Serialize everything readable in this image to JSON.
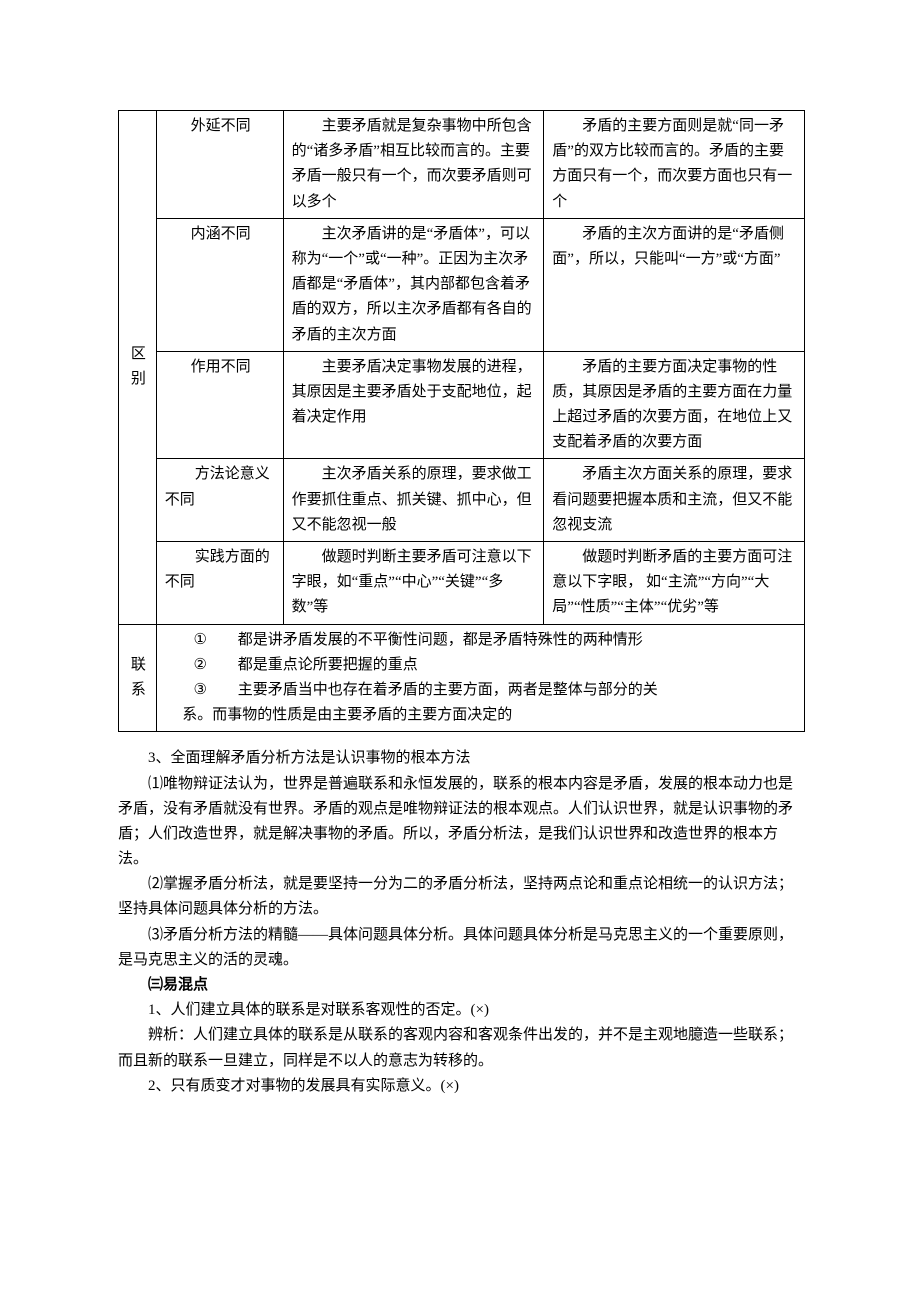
{
  "table": {
    "qubie_label": "区别",
    "lianxi_label": "联系",
    "rows": [
      {
        "c1": "外延不同",
        "c2": "　　主要矛盾就是复杂事物中所包含的“诸多矛盾”相互比较而言的。主要矛盾一般只有一个，而次要矛盾则可以多个",
        "c3": "　　矛盾的主要方面则是就“同一矛盾”的双方比较而言的。矛盾的主要方面只有一个，而次要方面也只有一个"
      },
      {
        "c1": "内涵不同",
        "c2": "　　主次矛盾讲的是“矛盾体”，可以称为“一个”或“一种”。正因为主次矛盾都是“矛盾体”，其内部都包含着矛盾的双方，所以主次矛盾都有各自的矛盾的主次方面",
        "c3": "　　矛盾的主次方面讲的是“矛盾侧面”，所以，只能叫“一方”或“方面”"
      },
      {
        "c1": "作用不同",
        "c2": "　　主要矛盾决定事物发展的进程，其原因是主要矛盾处于支配地位，起着决定作用",
        "c3": "　　矛盾的主要方面决定事物的性质，其原因是矛盾的主要方面在力量上超过矛盾的次要方面，在地位上又支配着矛盾的次要方面"
      },
      {
        "c1": "方法论意义不同",
        "c2": "　　主次矛盾关系的原理，要求做工作要抓住重点、抓关键、抓中心，但又不能忽视一般",
        "c3": "　　矛盾主次方面关系的原理，要求看问题要把握本质和主流，但又不能忽视支流"
      },
      {
        "c1": "实践方面的不同",
        "c2": "　　做题时判断主要矛盾可注意以下字眼，如“重点”“中心”“关键”“多数”等",
        "c3": "　　做题时判断矛盾的主要方面可注意以下字眼， 如“主流”“方向”“大局”“性质”“主体”“优劣”等"
      }
    ],
    "conn": {
      "l1": "都是讲矛盾发展的不平衡性问题，都是矛盾特殊性的两种情形",
      "l2": "都是重点论所要把握的重点",
      "l3a": "主要矛盾当中也存在着矛盾的主要方面，两者是整体与部分的关",
      "l3b": "系。而事物的性质是由主要矛盾的主要方面决定的"
    }
  },
  "body": {
    "h3": "3、全面理解矛盾分析方法是认识事物的根本方法",
    "p1": "⑴唯物辩证法认为，世界是普遍联系和永恒发展的，联系的根本内容是矛盾，发展的根本动力也是矛盾，没有矛盾就没有世界。矛盾的观点是唯物辩证法的根本观点。人们认识世界，就是认识事物的矛盾；人们改造世界，就是解决事物的矛盾。所以，矛盾分析法，是我们认识世界和改造世界的根本方法。",
    "p2": "⑵掌握矛盾分析法，就是要坚持一分为二的矛盾分析法，坚持两点论和重点论相统一的认识方法；坚持具体问题具体分析的方法。",
    "p3": "⑶矛盾分析方法的精髓——具体问题具体分析。具体问题具体分析是马克思主义的一个重要原则，是马克思主义的活的灵魂。",
    "yh": "㈢易混点",
    "m1": "1、人们建立具体的联系是对联系客观性的否定。(×)",
    "m1b": "辨析：人们建立具体的联系是从联系的客观内容和客观条件出发的，并不是主观地臆造一些联系；而且新的联系一旦建立，同样是不以人的意志为转移的。",
    "m2": "2、只有质变才对事物的发展具有实际意义。(×)"
  }
}
